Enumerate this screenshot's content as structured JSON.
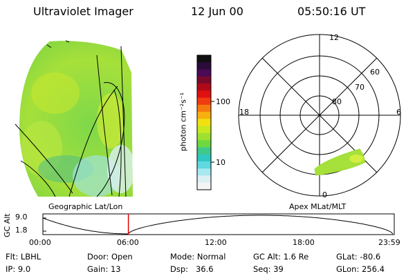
{
  "header": {
    "instrument": "Ultraviolet Imager",
    "date": "12 Jun 00",
    "time": "05:50:16 UT"
  },
  "colorbar": {
    "unit_label": "photon cm⁻²s⁻¹",
    "ticks": [
      "100",
      "10"
    ],
    "colors": [
      "#101010",
      "#2b0b3a",
      "#4a0a55",
      "#7a0a2a",
      "#b00a1a",
      "#e01010",
      "#f03c10",
      "#f57a10",
      "#f7b010",
      "#f2e010",
      "#c8e820",
      "#9ee030",
      "#6ed840",
      "#40c88a",
      "#30c8c0",
      "#60d8e0",
      "#a8e8f0",
      "#dcf0f4",
      "#f4f4f4"
    ]
  },
  "polar": {
    "mlt_labels": {
      "top": "12",
      "bottom": "0",
      "left": "18",
      "right": "6"
    },
    "lat_labels": [
      "60",
      "70",
      "80"
    ]
  },
  "labels": {
    "geo": "Geographic Lat/Lon",
    "apex": "Apex MLat/MLT"
  },
  "altitude_plot": {
    "ylabel": "GC Alt",
    "yticks": [
      "9.0",
      "1.8"
    ],
    "xticks": [
      "00:00",
      "06:00",
      "12:00",
      "18:00",
      "23:59"
    ],
    "current_time_hours": 5.84,
    "marker_color": "#e00000"
  },
  "info": {
    "flt": "Flt: LBHL",
    "door": "Door: Open",
    "mode": "Mode: Normal",
    "gcalt": "GC Alt: 1.6 Re",
    "glat": "GLat: -80.6",
    "ip": "IP: 9.0",
    "gain": "Gain: 13",
    "dsp": "Dsp:   36.6",
    "seq": "Seq: 39",
    "glon": "GLon: 256.4"
  }
}
